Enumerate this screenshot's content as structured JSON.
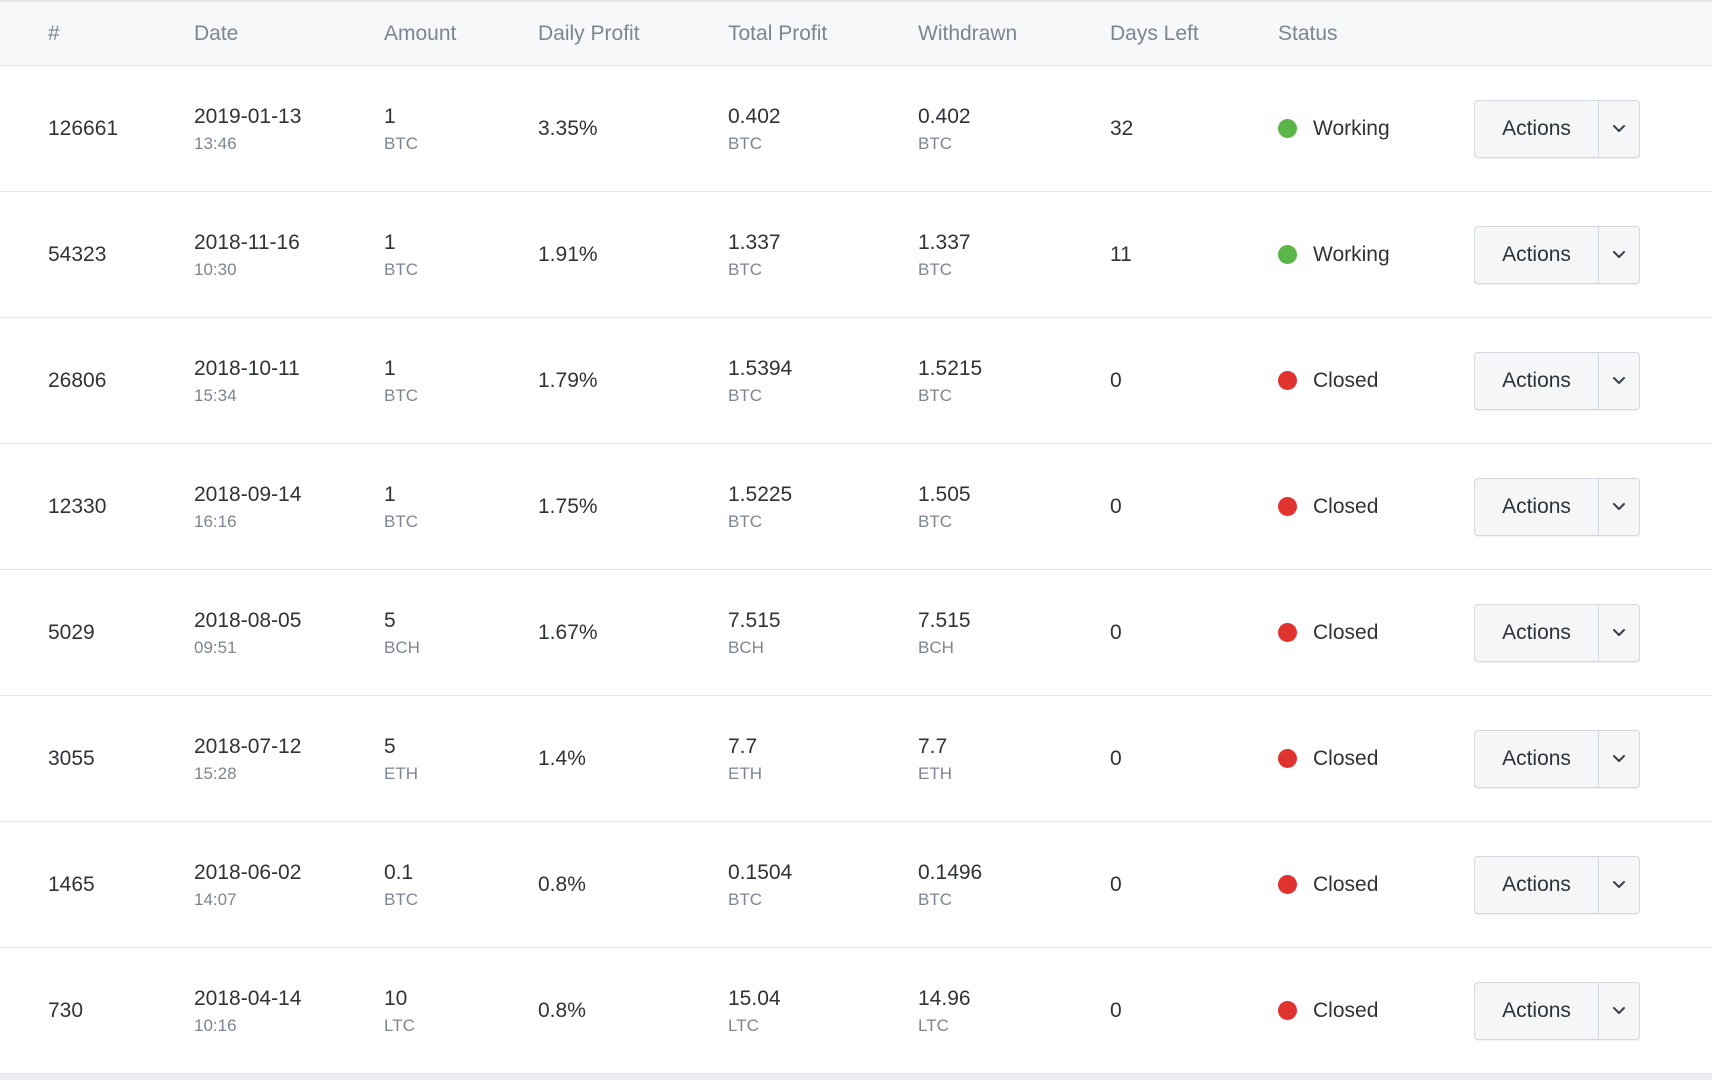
{
  "columns": [
    "#",
    "Date",
    "Amount",
    "Daily Profit",
    "Total Profit",
    "Withdrawn",
    "Days Left",
    "Status"
  ],
  "action_label": "Actions",
  "icons": {
    "caret": "chevron-down-icon",
    "status": "status-dot-icon"
  },
  "colors": {
    "working": "#5cb548",
    "closed": "#e0332f"
  },
  "rows": [
    {
      "id": "126661",
      "date": "2019-01-13",
      "time": "13:46",
      "amount": "1",
      "amount_cur": "BTC",
      "daily": "3.35%",
      "total": "0.402",
      "total_cur": "BTC",
      "withdrawn": "0.402",
      "withdrawn_cur": "BTC",
      "days_left": "32",
      "status": "Working"
    },
    {
      "id": "54323",
      "date": "2018-11-16",
      "time": "10:30",
      "amount": "1",
      "amount_cur": "BTC",
      "daily": "1.91%",
      "total": "1.337",
      "total_cur": "BTC",
      "withdrawn": "1.337",
      "withdrawn_cur": "BTC",
      "days_left": "11",
      "status": "Working"
    },
    {
      "id": "26806",
      "date": "2018-10-11",
      "time": "15:34",
      "amount": "1",
      "amount_cur": "BTC",
      "daily": "1.79%",
      "total": "1.5394",
      "total_cur": "BTC",
      "withdrawn": "1.5215",
      "withdrawn_cur": "BTC",
      "days_left": "0",
      "status": "Closed"
    },
    {
      "id": "12330",
      "date": "2018-09-14",
      "time": "16:16",
      "amount": "1",
      "amount_cur": "BTC",
      "daily": "1.75%",
      "total": "1.5225",
      "total_cur": "BTC",
      "withdrawn": "1.505",
      "withdrawn_cur": "BTC",
      "days_left": "0",
      "status": "Closed"
    },
    {
      "id": "5029",
      "date": "2018-08-05",
      "time": "09:51",
      "amount": "5",
      "amount_cur": "BCH",
      "daily": "1.67%",
      "total": "7.515",
      "total_cur": "BCH",
      "withdrawn": "7.515",
      "withdrawn_cur": "BCH",
      "days_left": "0",
      "status": "Closed"
    },
    {
      "id": "3055",
      "date": "2018-07-12",
      "time": "15:28",
      "amount": "5",
      "amount_cur": "ETH",
      "daily": "1.4%",
      "total": "7.7",
      "total_cur": "ETH",
      "withdrawn": "7.7",
      "withdrawn_cur": "ETH",
      "days_left": "0",
      "status": "Closed"
    },
    {
      "id": "1465",
      "date": "2018-06-02",
      "time": "14:07",
      "amount": "0.1",
      "amount_cur": "BTC",
      "daily": "0.8%",
      "total": "0.1504",
      "total_cur": "BTC",
      "withdrawn": "0.1496",
      "withdrawn_cur": "BTC",
      "days_left": "0",
      "status": "Closed"
    },
    {
      "id": "730",
      "date": "2018-04-14",
      "time": "10:16",
      "amount": "10",
      "amount_cur": "LTC",
      "daily": "0.8%",
      "total": "15.04",
      "total_cur": "LTC",
      "withdrawn": "14.96",
      "withdrawn_cur": "LTC",
      "days_left": "0",
      "status": "Closed"
    }
  ]
}
